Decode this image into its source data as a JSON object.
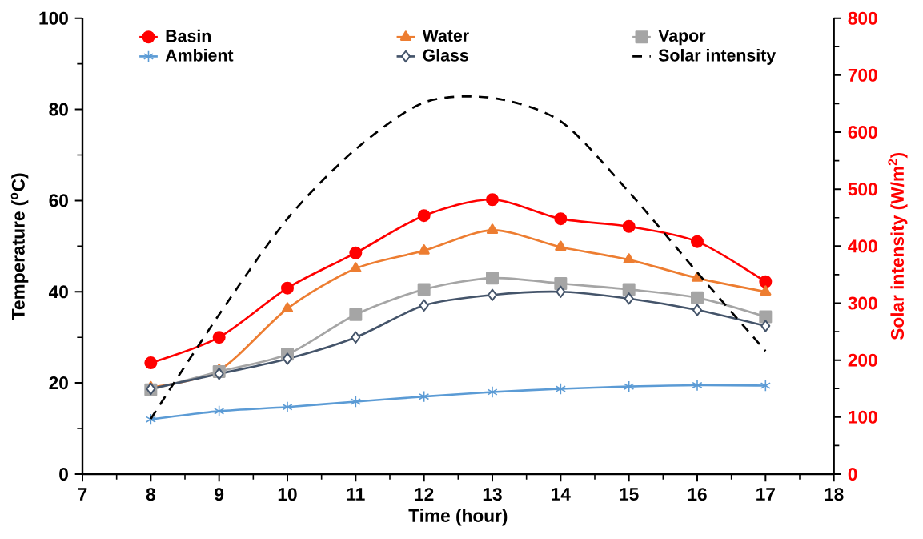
{
  "chart_data": {
    "type": "line",
    "xlabel": "Time (hour)",
    "ylabel": "Temperature ($^{o}$C)",
    "y2label": "Solar intensity (W/m$^{2}$)",
    "x": [
      8,
      9,
      10,
      11,
      12,
      13,
      14,
      15,
      16,
      17
    ],
    "series": [
      {
        "name": "Basin",
        "color": "#ff0000",
        "marker": "circle",
        "values": [
          24.4,
          30,
          40.8,
          48.5,
          56.7,
          60.2,
          56,
          54.3,
          51,
          42.2
        ]
      },
      {
        "name": "Water",
        "color": "#ed7d31",
        "marker": "triangle",
        "values": [
          19,
          22.8,
          36.3,
          45.1,
          49,
          53.5,
          49.8,
          47,
          43,
          40
        ]
      },
      {
        "name": "Vapor",
        "color": "#a5a5a5",
        "marker": "square",
        "values": [
          18.5,
          22.5,
          26.3,
          35,
          40.5,
          43,
          41.8,
          40.5,
          38.7,
          34.5
        ]
      },
      {
        "name": "Ambient",
        "color": "#5b9bd5",
        "marker": "cross",
        "values": [
          12,
          13.8,
          14.7,
          15.9,
          17,
          18,
          18.7,
          19.2,
          19.5,
          19.4
        ]
      },
      {
        "name": "Glass",
        "color": "#44546a",
        "marker": "diamond",
        "values": [
          18.7,
          22,
          25.3,
          30,
          37,
          39.3,
          40,
          38.5,
          36,
          32.5
        ]
      },
      {
        "name": "Solar intensity",
        "color": "#000000",
        "marker": "none",
        "line_style": "dashed",
        "axis": "y2",
        "values": [
          97,
          280,
          448,
          570,
          652,
          660,
          619,
          495,
          354,
          216
        ]
      }
    ],
    "xlim": [
      7,
      18
    ],
    "xticks": [
      7,
      8,
      9,
      10,
      11,
      12,
      13,
      14,
      15,
      16,
      17,
      18
    ],
    "ylim": [
      0,
      100
    ],
    "yticks": [
      0,
      20,
      40,
      60,
      80,
      100
    ],
    "y2lim": [
      0,
      800
    ],
    "y2ticks": [
      0,
      100,
      200,
      300,
      400,
      500,
      600,
      700,
      800
    ],
    "legend": "top",
    "grid": false
  }
}
